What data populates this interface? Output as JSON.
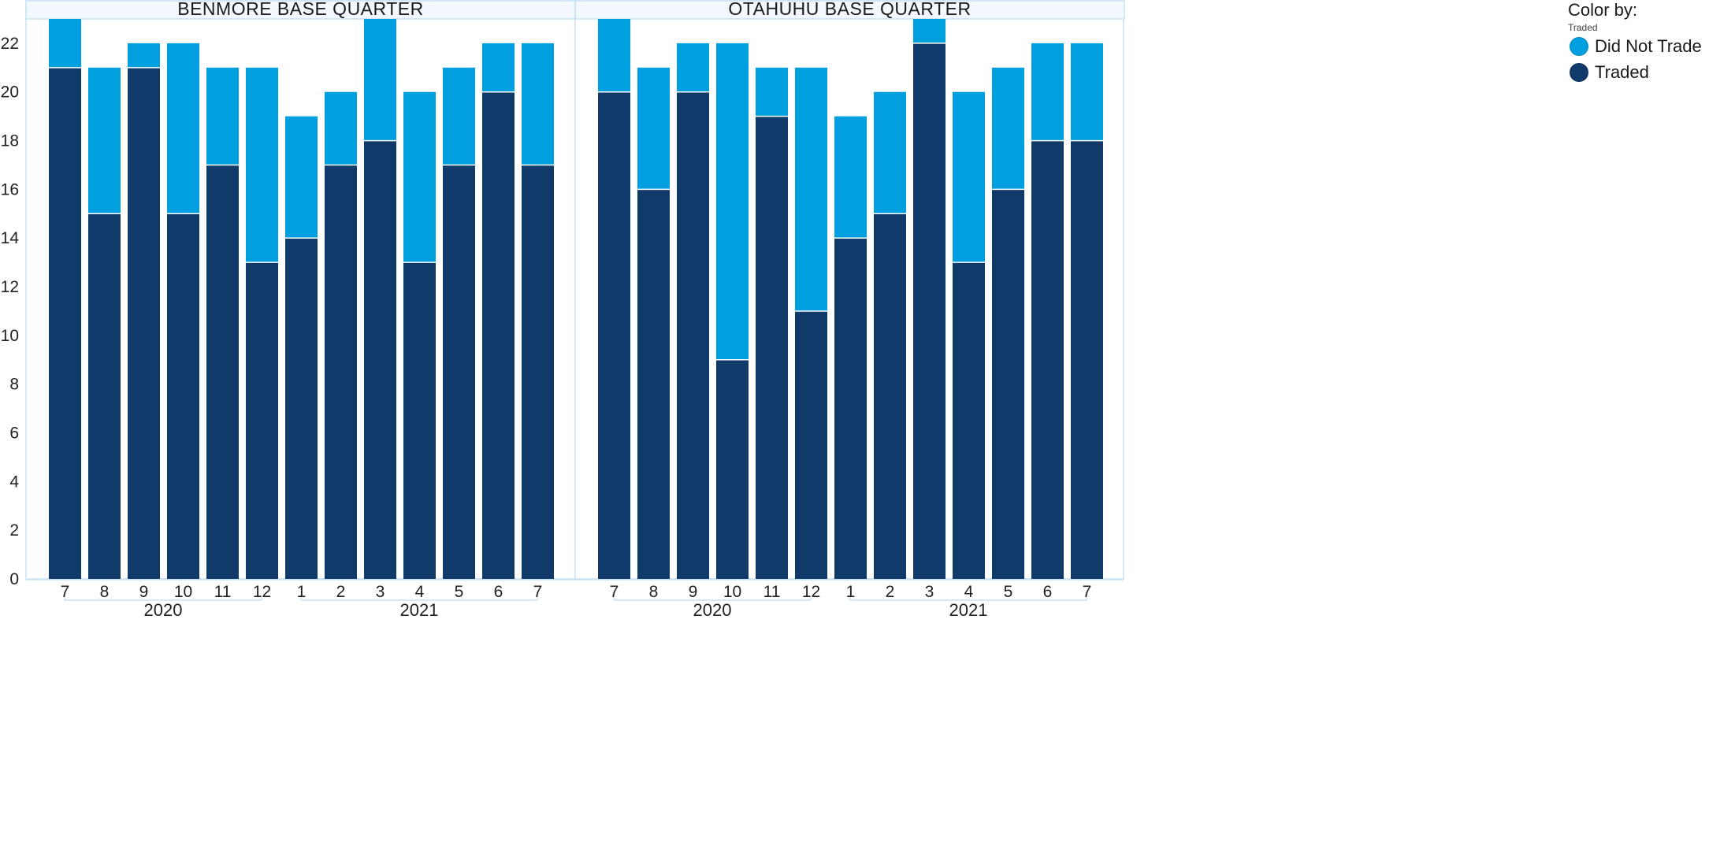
{
  "colors": {
    "did_not_trade": "#009FE0",
    "traded": "#103A6A",
    "frame": "#C8E2F4",
    "header_bg": "#F2F8FD"
  },
  "legend": {
    "title": "Color by:",
    "subtitle": "Traded",
    "items": [
      {
        "label": "Did Not Trade",
        "color": "#009FE0"
      },
      {
        "label": "Traded",
        "color": "#103A6A"
      }
    ]
  },
  "chart_data": {
    "type": "bar",
    "stacked": true,
    "ylim": [
      0,
      23
    ],
    "yticks": [
      0,
      2,
      4,
      6,
      8,
      10,
      12,
      14,
      16,
      18,
      20,
      22
    ],
    "grid": false,
    "legend_position": "right",
    "series_names": [
      "Traded",
      "Did Not Trade"
    ],
    "panels": [
      {
        "title": "BENMORE BASE QUARTER",
        "categories": [
          "7",
          "8",
          "9",
          "10",
          "11",
          "12",
          "1",
          "2",
          "3",
          "4",
          "5",
          "6",
          "7"
        ],
        "years": [
          {
            "label": "2020",
            "from": 0,
            "to": 5
          },
          {
            "label": "2021",
            "from": 6,
            "to": 12
          }
        ],
        "series": [
          {
            "name": "Traded",
            "values": [
              21,
              15,
              21,
              15,
              17,
              13,
              14,
              17,
              18,
              13,
              17,
              20,
              17
            ]
          },
          {
            "name": "Did Not Trade",
            "values": [
              2,
              6,
              1,
              7,
              4,
              8,
              5,
              3,
              5,
              7,
              4,
              2,
              5
            ]
          }
        ]
      },
      {
        "title": "OTAHUHU BASE QUARTER",
        "categories": [
          "7",
          "8",
          "9",
          "10",
          "11",
          "12",
          "1",
          "2",
          "3",
          "4",
          "5",
          "6",
          "7"
        ],
        "years": [
          {
            "label": "2020",
            "from": 0,
            "to": 5
          },
          {
            "label": "2021",
            "from": 6,
            "to": 12
          }
        ],
        "series": [
          {
            "name": "Traded",
            "values": [
              20,
              16,
              20,
              9,
              19,
              11,
              14,
              15,
              22,
              13,
              16,
              18,
              18
            ]
          },
          {
            "name": "Did Not Trade",
            "values": [
              3,
              5,
              2,
              13,
              2,
              10,
              5,
              5,
              1,
              7,
              5,
              4,
              4
            ]
          }
        ]
      }
    ]
  }
}
